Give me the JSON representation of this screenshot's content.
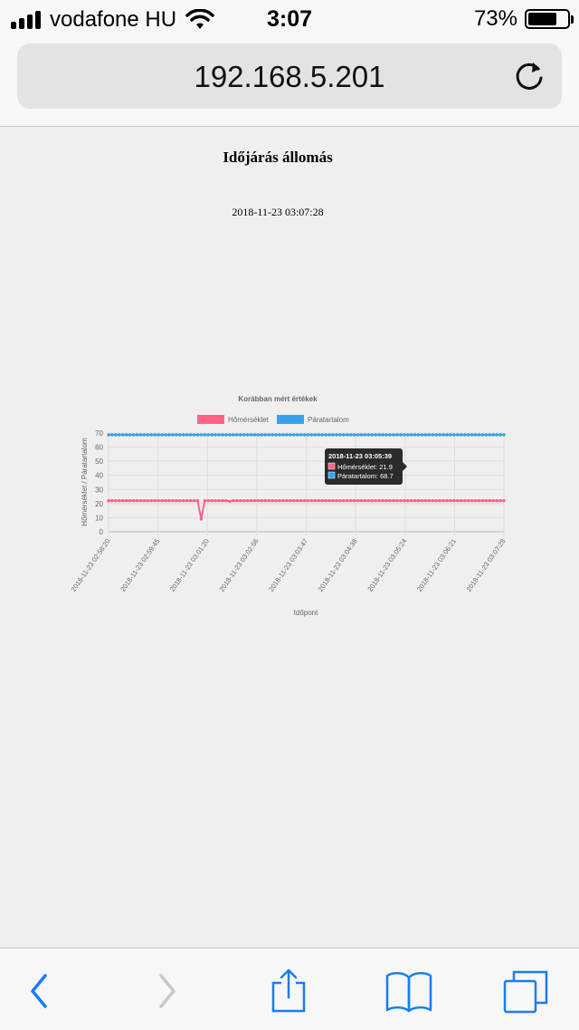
{
  "status_bar": {
    "carrier": "vodafone HU",
    "time": "3:07",
    "battery_percent": "73%",
    "battery_level": 0.73
  },
  "browser": {
    "url": "192.168.5.201",
    "reload_icon": "reload-icon",
    "toolbar_icons": [
      "back-icon",
      "forward-icon",
      "share-icon",
      "bookmarks-icon",
      "tabs-icon"
    ]
  },
  "page": {
    "title": "Időjárás állomás",
    "timestamp": "2018-11-23 03:07:28"
  },
  "chart_data": {
    "type": "line",
    "title": "Korábban mért értékek",
    "xlabel": "Időpont",
    "ylabel": "Hőmérséklet / Páratartalom",
    "ylim": [
      0,
      70
    ],
    "yticks": [
      0,
      10,
      20,
      30,
      40,
      50,
      60,
      70
    ],
    "legend_position": "top",
    "grid": true,
    "x_tick_labels": [
      "2018-11-23 02:58:20",
      "2018-11-23 02:59:45",
      "2018-11-23 03:01:20",
      "2018-11-23 03:02:56",
      "2018-11-23 03:03:47",
      "2018-11-23 03:04:38",
      "2018-11-23 03:05:24",
      "2018-11-23 03:06:21",
      "2018-11-23 03:07:28"
    ],
    "series": [
      {
        "name": "Hőmérséklet",
        "color": "#ff6384",
        "values": [
          22,
          22,
          22,
          22,
          22,
          22,
          22,
          22,
          22,
          22,
          22,
          22,
          22,
          22,
          22,
          22,
          22,
          22,
          22,
          22,
          22,
          22,
          22,
          22,
          22,
          22,
          9,
          22,
          22,
          22,
          22,
          22,
          22,
          22,
          21.5,
          22,
          22,
          22,
          22,
          22,
          22,
          22,
          22,
          22,
          22,
          22,
          22,
          22,
          22,
          22,
          22,
          22,
          22,
          22,
          22,
          22,
          22,
          22,
          22,
          22,
          22,
          22,
          22,
          22,
          22,
          22,
          22,
          22,
          22,
          22,
          22,
          22,
          22,
          22,
          22,
          22,
          22,
          22,
          22,
          22,
          22,
          22,
          22,
          22,
          22,
          22,
          22,
          22,
          22,
          22,
          22,
          22,
          22,
          22,
          22,
          22,
          22,
          22,
          22,
          22,
          22,
          22,
          22,
          22,
          22,
          22,
          22,
          22,
          22,
          22,
          22,
          22
        ]
      },
      {
        "name": "Páratartalom",
        "color": "#36a2eb",
        "values": [
          68.7,
          68.7,
          68.7,
          68.7,
          68.7,
          68.7,
          68.7,
          68.7,
          68.7,
          68.7,
          68.7,
          68.7,
          68.7,
          68.7,
          68.7,
          68.7,
          68.7,
          68.7,
          68.7,
          68.7,
          68.7,
          68.7,
          68.7,
          68.7,
          68.7,
          68.7,
          68.7,
          68.7,
          68.7,
          68.7,
          68.7,
          68.7,
          68.7,
          68.7,
          68.7,
          68.7,
          68.7,
          68.7,
          68.7,
          68.7,
          68.7,
          68.7,
          68.7,
          68.7,
          68.7,
          68.7,
          68.7,
          68.7,
          68.7,
          68.7,
          68.7,
          68.7,
          68.7,
          68.7,
          68.7,
          68.7,
          68.7,
          68.7,
          68.7,
          68.7,
          68.7,
          68.7,
          68.7,
          68.7,
          68.7,
          68.7,
          68.7,
          68.7,
          68.7,
          68.7,
          68.7,
          68.7,
          68.7,
          68.7,
          68.7,
          68.7,
          68.7,
          68.7,
          68.7,
          68.7,
          68.7,
          68.7,
          68.7,
          68.7,
          68.7,
          68.7,
          68.7,
          68.7,
          68.7,
          68.7,
          68.7,
          68.7,
          68.7,
          68.7,
          68.7,
          68.7,
          68.7,
          68.7,
          68.7,
          68.7,
          68.7,
          68.7,
          68.7,
          68.7,
          68.7,
          68.7,
          68.7,
          68.7,
          68.7,
          68.7,
          68.7,
          68.7
        ]
      }
    ],
    "tooltip": {
      "title": "2018-11-23 03:05:39",
      "lines": [
        "Hőmérséklet: 21.9",
        "Páratartalom: 68.7"
      ]
    }
  }
}
